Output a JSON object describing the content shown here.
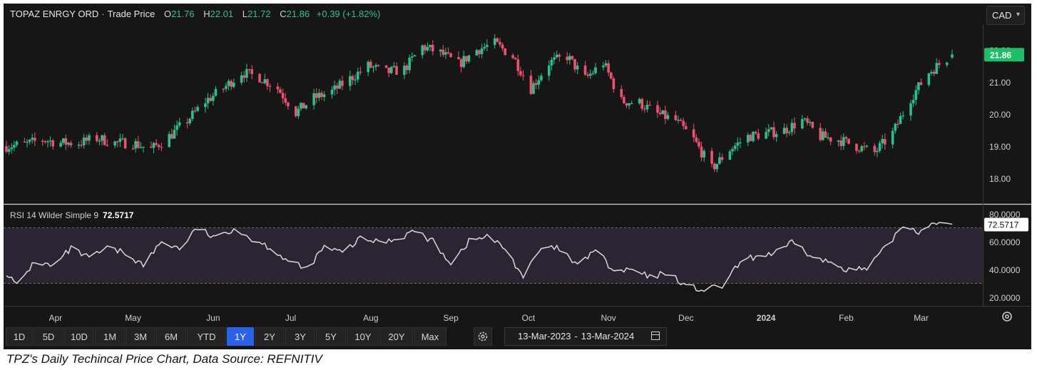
{
  "header": {
    "instrument": "TOPAZ ENRGY ORD",
    "separator": "·",
    "series": "Trade Price",
    "ohlc": [
      {
        "k": "O",
        "v": "21.76"
      },
      {
        "k": "H",
        "v": "22.01"
      },
      {
        "k": "L",
        "v": "21.72"
      },
      {
        "k": "C",
        "v": "21.86"
      }
    ],
    "change": "+0.39 (+1.82%)",
    "currency": "CAD"
  },
  "rsi": {
    "legend": "RSI 14 Wilder Simple 9",
    "last_value": "72.5717"
  },
  "toolbar": {
    "ranges": [
      "1D",
      "5D",
      "10D",
      "1M",
      "3M",
      "6M",
      "YTD",
      "1Y",
      "2Y",
      "3Y",
      "5Y",
      "10Y",
      "20Y",
      "Max"
    ],
    "active": "1Y",
    "date_from": "13-Mar-2023",
    "date_sep": "-",
    "date_to": "13-Mar-2024"
  },
  "caption": "TPZ's Daily Techincal Price Chart, Data Source: REFNITIV",
  "colors": {
    "up": "#27c28b",
    "down": "#f0506e",
    "rsi_line": "#d9d9d9",
    "rsi_band": "#2a2433",
    "active_button": "#2b63e8",
    "last_price_badge": "#1fbf6a"
  },
  "chart_data": [
    {
      "type": "candlestick",
      "title": "TOPAZ ENRGY ORD · Trade Price",
      "date_range": [
        "2023-03-13",
        "2024-03-13"
      ],
      "x_ticks": [
        "Apr",
        "May",
        "Jun",
        "Jul",
        "Aug",
        "Sep",
        "Oct",
        "Nov",
        "Dec",
        "2024",
        "Feb",
        "Mar"
      ],
      "y_ticks": [
        "18.00",
        "19.00",
        "20.00",
        "21.00",
        "22.00"
      ],
      "ylim": [
        17.6,
        23.1
      ],
      "last_price": "21.86",
      "grid": false,
      "close_trend": [
        [
          "2023-03-13",
          19.0
        ],
        [
          "2023-03-20",
          19.05
        ],
        [
          "2023-03-27",
          19.2
        ],
        [
          "2023-04-03",
          19.1
        ],
        [
          "2023-04-10",
          19.1
        ],
        [
          "2023-04-17",
          19.25
        ],
        [
          "2023-04-24",
          19.1
        ],
        [
          "2023-05-01",
          19.1
        ],
        [
          "2023-05-08",
          18.9
        ],
        [
          "2023-05-15",
          19.3
        ],
        [
          "2023-05-22",
          19.8
        ],
        [
          "2023-05-29",
          20.4
        ],
        [
          "2023-06-05",
          20.8
        ],
        [
          "2023-06-12",
          21.3
        ],
        [
          "2023-06-19",
          21.15
        ],
        [
          "2023-06-26",
          20.8
        ],
        [
          "2023-07-03",
          20.05
        ],
        [
          "2023-07-10",
          20.5
        ],
        [
          "2023-07-17",
          20.7
        ],
        [
          "2023-07-24",
          21.1
        ],
        [
          "2023-07-31",
          21.5
        ],
        [
          "2023-08-07",
          21.3
        ],
        [
          "2023-08-14",
          21.4
        ],
        [
          "2023-08-21",
          22.1
        ],
        [
          "2023-08-28",
          21.9
        ],
        [
          "2023-09-04",
          21.55
        ],
        [
          "2023-09-11",
          22.0
        ],
        [
          "2023-09-18",
          22.2
        ],
        [
          "2023-09-25",
          21.8
        ],
        [
          "2023-10-02",
          20.8
        ],
        [
          "2023-10-09",
          21.6
        ],
        [
          "2023-10-16",
          21.8
        ],
        [
          "2023-10-23",
          21.1
        ],
        [
          "2023-10-30",
          21.6
        ],
        [
          "2023-11-06",
          20.4
        ],
        [
          "2023-11-13",
          20.35
        ],
        [
          "2023-11-20",
          20.0
        ],
        [
          "2023-11-27",
          19.8
        ],
        [
          "2023-12-04",
          19.2
        ],
        [
          "2023-12-11",
          18.3
        ],
        [
          "2023-12-18",
          18.9
        ],
        [
          "2023-12-25",
          19.3
        ],
        [
          "2024-01-01",
          19.4
        ],
        [
          "2024-01-08",
          19.5
        ],
        [
          "2024-01-15",
          19.8
        ],
        [
          "2024-01-22",
          19.3
        ],
        [
          "2024-01-29",
          19.2
        ],
        [
          "2024-02-05",
          19.0
        ],
        [
          "2024-02-12",
          18.8
        ],
        [
          "2024-02-19",
          19.4
        ],
        [
          "2024-02-26",
          20.5
        ],
        [
          "2024-03-04",
          21.3
        ],
        [
          "2024-03-13",
          21.86
        ]
      ]
    },
    {
      "type": "line",
      "title": "RSI 14 Wilder Simple 9",
      "y_ticks": [
        "20.0000",
        "40.0000",
        "60.0000",
        "80.0000"
      ],
      "ylim": [
        16,
        82
      ],
      "bands": [
        30,
        70
      ],
      "last_value": "72.5717",
      "grid": false,
      "series": [
        {
          "name": "RSI 14 Wilder Simple 9",
          "points": [
            [
              "2023-03-13",
              38
            ],
            [
              "2023-03-17",
              28
            ],
            [
              "2023-03-24",
              46
            ],
            [
              "2023-03-31",
              42
            ],
            [
              "2023-04-07",
              55
            ],
            [
              "2023-04-14",
              48
            ],
            [
              "2023-04-21",
              55
            ],
            [
              "2023-04-28",
              52
            ],
            [
              "2023-05-05",
              43
            ],
            [
              "2023-05-12",
              60
            ],
            [
              "2023-05-19",
              55
            ],
            [
              "2023-05-26",
              70
            ],
            [
              "2023-06-02",
              62
            ],
            [
              "2023-06-09",
              70
            ],
            [
              "2023-06-16",
              62
            ],
            [
              "2023-06-23",
              56
            ],
            [
              "2023-06-30",
              46
            ],
            [
              "2023-07-07",
              40
            ],
            [
              "2023-07-14",
              56
            ],
            [
              "2023-07-21",
              52
            ],
            [
              "2023-07-28",
              62
            ],
            [
              "2023-08-04",
              60
            ],
            [
              "2023-08-11",
              62
            ],
            [
              "2023-08-18",
              68
            ],
            [
              "2023-08-25",
              60
            ],
            [
              "2023-09-01",
              45
            ],
            [
              "2023-09-08",
              60
            ],
            [
              "2023-09-15",
              64
            ],
            [
              "2023-09-22",
              55
            ],
            [
              "2023-09-29",
              35
            ],
            [
              "2023-10-06",
              55
            ],
            [
              "2023-10-13",
              55
            ],
            [
              "2023-10-20",
              42
            ],
            [
              "2023-10-27",
              55
            ],
            [
              "2023-11-03",
              38
            ],
            [
              "2023-11-10",
              40
            ],
            [
              "2023-11-17",
              34
            ],
            [
              "2023-11-24",
              38
            ],
            [
              "2023-12-01",
              28
            ],
            [
              "2023-12-08",
              25
            ],
            [
              "2023-12-15",
              28
            ],
            [
              "2023-12-22",
              45
            ],
            [
              "2023-12-29",
              50
            ],
            [
              "2024-01-05",
              52
            ],
            [
              "2024-01-12",
              60
            ],
            [
              "2024-01-19",
              48
            ],
            [
              "2024-01-26",
              45
            ],
            [
              "2024-02-02",
              40
            ],
            [
              "2024-02-09",
              40
            ],
            [
              "2024-02-16",
              55
            ],
            [
              "2024-02-23",
              72
            ],
            [
              "2024-03-01",
              67
            ],
            [
              "2024-03-06",
              75
            ],
            [
              "2024-03-13",
              72.57
            ]
          ]
        }
      ]
    }
  ]
}
